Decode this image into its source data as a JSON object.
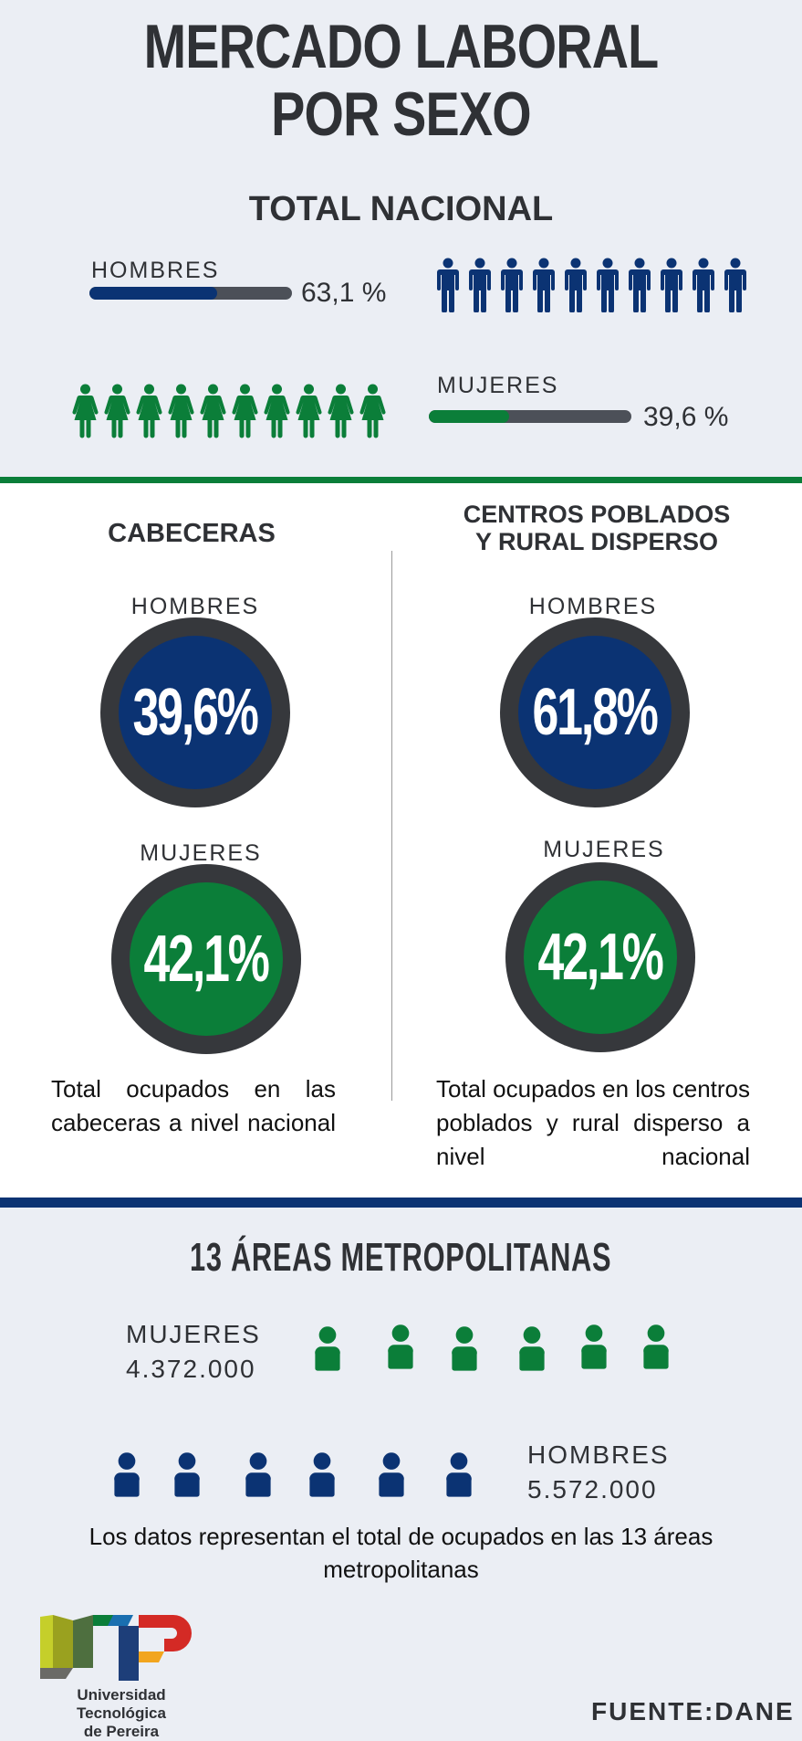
{
  "title": {
    "line1": "MERCADO LABORAL",
    "line2": "POR SEXO"
  },
  "nacional": {
    "heading": "TOTAL NACIONAL",
    "hombres": {
      "label": "HOMBRES",
      "value": "63,1 %",
      "fraction": 0.631,
      "color": "#0b3373"
    },
    "mujeres": {
      "label": "MUJERES",
      "value": "39,6 %",
      "fraction": 0.396,
      "color": "#0b7e39"
    }
  },
  "cabeceras": {
    "heading": "CABECERAS",
    "hombres_label": "HOMBRES",
    "hombres_value": "39,6%",
    "mujeres_label": "MUJERES",
    "mujeres_value": "42,1%",
    "description": "Total ocupados en las cabeceras a nivel nacional"
  },
  "rural": {
    "heading_line1": "CENTROS POBLADOS",
    "heading_line2": "Y RURAL DISPERSO",
    "hombres_label": "HOMBRES",
    "hombres_value": "61,8%",
    "mujeres_label": "MUJERES",
    "mujeres_value": "42,1%",
    "description": "Total ocupados en los centros poblados y rural disperso a nivel nacional"
  },
  "metro": {
    "heading": "13 ÁREAS METROPOLITANAS",
    "mujeres_label": "MUJERES",
    "mujeres_value": "4.372.000",
    "hombres_label": "HOMBRES",
    "hombres_value": "5.572.000",
    "note": "Los datos representan el total de ocupados en las 13 áreas metropolitanas"
  },
  "logo": {
    "line1": "Universidad Tecnológica",
    "line2": "de Pereira"
  },
  "source": "FUENTE:DANE",
  "colors": {
    "blue": "#0b3373",
    "green": "#0b7e39",
    "dark": "#2f3135"
  },
  "icons": {
    "man": "man-icon",
    "woman": "woman-icon",
    "user": "user-icon"
  }
}
